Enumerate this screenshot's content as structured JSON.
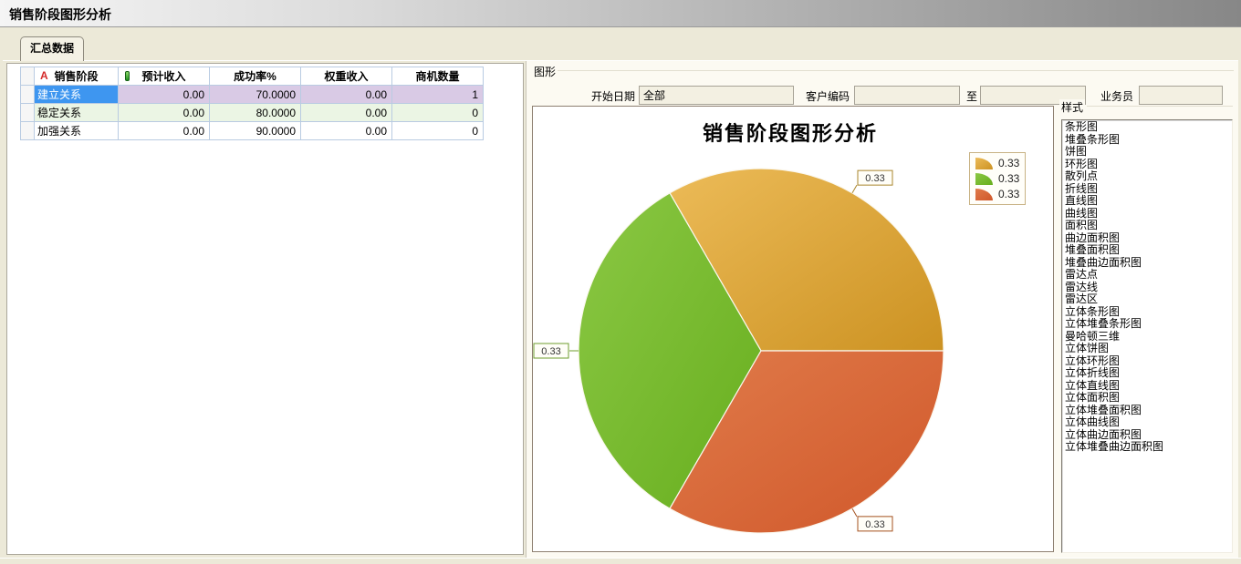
{
  "window": {
    "title": "销售阶段图形分析"
  },
  "tab": {
    "label": "汇总数据"
  },
  "table": {
    "columns": [
      {
        "label": "销售阶段",
        "icon": "sort-a-icon",
        "icon_char": "A"
      },
      {
        "label": "预计收入",
        "icon": "field-type-icon"
      },
      {
        "label": "成功率%"
      },
      {
        "label": "权重收入"
      },
      {
        "label": "商机数量"
      }
    ],
    "rows": [
      {
        "cells": [
          "建立关系",
          "0.00",
          "70.0000",
          "0.00",
          "1"
        ],
        "selected": true,
        "tint": "lavender"
      },
      {
        "cells": [
          "稳定关系",
          "0.00",
          "80.0000",
          "0.00",
          "0"
        ],
        "selected": false,
        "tint": "green"
      },
      {
        "cells": [
          "加强关系",
          "0.00",
          "90.0000",
          "0.00",
          "0"
        ],
        "selected": false,
        "tint": "none"
      }
    ]
  },
  "graph": {
    "caption": "图形",
    "filters": {
      "start_date": {
        "label": "开始日期",
        "value": "全部"
      },
      "customer_code": {
        "label": "客户编码",
        "value": ""
      },
      "to": {
        "label": "至",
        "value": ""
      },
      "salesman": {
        "label": "业务员",
        "value": ""
      }
    }
  },
  "styles": {
    "caption": "样式",
    "options": [
      "条形图",
      "堆叠条形图",
      "饼图",
      "环形图",
      "散列点",
      "折线图",
      "直线图",
      "曲线图",
      "面积图",
      "曲边面积图",
      "堆叠面积图",
      "堆叠曲边面积图",
      "雷达点",
      "雷达线",
      "雷达区",
      "立体条形图",
      "立体堆叠条形图",
      "曼哈顿三维",
      "立体饼图",
      "立体环形图",
      "立体折线图",
      "立体直线图",
      "立体面积图",
      "立体堆叠面积图",
      "立体曲线图",
      "立体曲边面积图",
      "立体堆叠曲边面积图"
    ]
  },
  "chart_data": {
    "type": "pie",
    "title": "销售阶段图形分析",
    "values": [
      0.33,
      0.33,
      0.33
    ],
    "labels": [
      "0.33",
      "0.33",
      "0.33"
    ],
    "legend": {
      "position": "top-right",
      "entries": [
        "0.33",
        "0.33",
        "0.33"
      ]
    },
    "colors": [
      {
        "light": "#ECBB58",
        "dark": "#CC9222",
        "edge": "#A9852C"
      },
      {
        "light": "#8BC844",
        "dark": "#67AE1E",
        "edge": "#6F9E2E"
      },
      {
        "light": "#E07B4A",
        "dark": "#D0572A",
        "edge": "#A4511F"
      }
    ],
    "start_angle_deg": 0,
    "direction": "ccw"
  }
}
